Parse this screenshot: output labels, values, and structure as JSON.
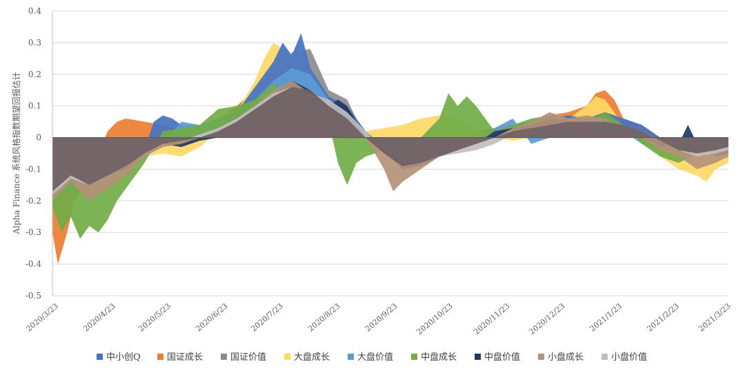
{
  "chart_data": {
    "type": "area",
    "title": "",
    "xlabel": "",
    "ylabel": "Alpha Finance 系统风格指数期望回报估计",
    "ylim": [
      -0.5,
      0.4
    ],
    "yticks": [
      "0.4",
      "0.3",
      "0.2",
      "0.1",
      "0",
      "-0.1",
      "-0.2",
      "-0.3",
      "-0.4",
      "-0.5"
    ],
    "ytick_values": [
      0.4,
      0.3,
      0.2,
      0.1,
      0,
      -0.1,
      -0.2,
      -0.3,
      -0.4,
      -0.5
    ],
    "grid": true,
    "legend_position": "bottom",
    "x_start_day": 0,
    "x_end_day": 367,
    "xticks": [
      {
        "label": "2020/3/23",
        "day": 0
      },
      {
        "label": "2020/4/23",
        "day": 31
      },
      {
        "label": "2020/5/23",
        "day": 61
      },
      {
        "label": "2020/6/23",
        "day": 92
      },
      {
        "label": "2020/7/23",
        "day": 122
      },
      {
        "label": "2020/8/23",
        "day": 153
      },
      {
        "label": "2020/9/23",
        "day": 184
      },
      {
        "label": "2020/10/23",
        "day": 214
      },
      {
        "label": "2020/11/23",
        "day": 245
      },
      {
        "label": "2020/12/23",
        "day": 275
      },
      {
        "label": "2021/1/23",
        "day": 306
      },
      {
        "label": "2021/2/23",
        "day": 337
      },
      {
        "label": "2021/3/23",
        "day": 365
      }
    ],
    "series": [
      {
        "name": "国证价值",
        "color": "#8C8C8C",
        "x": [
          0,
          10,
          20,
          30,
          40,
          50,
          60,
          70,
          80,
          90,
          100,
          110,
          120,
          130,
          140,
          150,
          160,
          170,
          180,
          190,
          200,
          210,
          220,
          230,
          240,
          250,
          260,
          270,
          280,
          290,
          300,
          310,
          320,
          330,
          340,
          350,
          360,
          367
        ],
        "values": [
          -0.22,
          -0.14,
          -0.18,
          -0.14,
          -0.1,
          -0.06,
          -0.03,
          -0.02,
          0.0,
          0.02,
          0.05,
          0.1,
          0.17,
          0.27,
          0.28,
          0.15,
          0.12,
          0.0,
          -0.05,
          -0.1,
          -0.08,
          -0.06,
          -0.04,
          -0.02,
          0.0,
          0.02,
          0.03,
          0.05,
          0.07,
          0.08,
          0.06,
          0.04,
          0.0,
          -0.04,
          -0.06,
          -0.05,
          -0.03,
          -0.02
        ]
      },
      {
        "name": "国证成长",
        "color": "#ED7D31",
        "x": [
          0,
          3,
          8,
          12,
          20,
          30,
          35,
          40,
          50,
          60,
          70,
          80,
          90,
          100,
          110,
          120,
          125,
          130,
          135,
          140,
          150,
          160,
          170,
          180,
          190,
          200,
          210,
          220,
          230,
          240,
          250,
          260,
          270,
          280,
          290,
          295,
          300,
          305,
          310,
          320,
          330,
          340,
          350,
          360,
          367
        ],
        "values": [
          -0.3,
          -0.4,
          -0.3,
          -0.2,
          -0.12,
          0.02,
          0.05,
          0.06,
          0.05,
          0.04,
          0.02,
          0.01,
          0.06,
          0.1,
          0.15,
          0.22,
          0.27,
          0.22,
          0.25,
          0.2,
          0.12,
          0.1,
          0.02,
          -0.04,
          -0.06,
          -0.06,
          -0.04,
          -0.02,
          0.02,
          0.03,
          0.04,
          0.05,
          0.07,
          0.08,
          0.1,
          0.14,
          0.15,
          0.12,
          0.06,
          0.04,
          0.0,
          -0.04,
          -0.06,
          -0.05,
          -0.07
        ]
      },
      {
        "name": "大盘成长",
        "color": "#FFD966",
        "x": [
          0,
          10,
          20,
          30,
          40,
          50,
          60,
          70,
          80,
          90,
          100,
          110,
          115,
          120,
          125,
          130,
          135,
          140,
          150,
          160,
          170,
          180,
          190,
          200,
          210,
          220,
          230,
          240,
          250,
          260,
          270,
          280,
          290,
          295,
          300,
          305,
          310,
          320,
          330,
          340,
          350,
          355,
          360,
          367
        ],
        "values": [
          -0.2,
          -0.16,
          -0.15,
          -0.12,
          -0.1,
          -0.06,
          -0.05,
          -0.06,
          -0.03,
          0.02,
          0.08,
          0.18,
          0.25,
          0.3,
          0.28,
          0.26,
          0.28,
          0.22,
          0.12,
          0.08,
          0.02,
          0.03,
          0.04,
          0.06,
          0.07,
          0.06,
          0.03,
          0.0,
          -0.01,
          0.0,
          0.03,
          0.06,
          0.1,
          0.13,
          0.12,
          0.08,
          0.04,
          0.0,
          -0.06,
          -0.1,
          -0.12,
          -0.14,
          -0.1,
          -0.08
        ]
      },
      {
        "name": "中小创Q",
        "color": "#4472C4",
        "x": [
          0,
          10,
          20,
          30,
          40,
          50,
          55,
          60,
          65,
          70,
          80,
          90,
          100,
          110,
          120,
          125,
          130,
          135,
          140,
          150,
          160,
          170,
          180,
          190,
          200,
          210,
          220,
          230,
          240,
          250,
          260,
          270,
          280,
          290,
          300,
          305,
          310,
          320,
          330,
          340,
          350,
          360,
          367
        ],
        "values": [
          -0.18,
          -0.15,
          -0.14,
          -0.12,
          -0.08,
          -0.04,
          0.05,
          0.07,
          0.06,
          0.04,
          0.03,
          0.06,
          0.08,
          0.16,
          0.24,
          0.3,
          0.26,
          0.33,
          0.22,
          0.13,
          0.1,
          0.02,
          -0.03,
          -0.08,
          -0.08,
          -0.06,
          -0.04,
          -0.02,
          0.02,
          0.04,
          0.05,
          0.06,
          0.07,
          0.06,
          0.08,
          0.07,
          0.06,
          0.04,
          0.0,
          -0.03,
          -0.05,
          -0.03,
          -0.04
        ]
      },
      {
        "name": "大盘价值",
        "color": "#5B9BD5",
        "x": [
          0,
          10,
          20,
          30,
          40,
          50,
          60,
          70,
          80,
          90,
          100,
          110,
          120,
          130,
          140,
          150,
          160,
          170,
          180,
          190,
          200,
          210,
          220,
          230,
          240,
          250,
          260,
          270,
          280,
          290,
          300,
          310,
          320,
          330,
          340,
          350,
          360,
          367
        ],
        "values": [
          -0.2,
          -0.16,
          -0.16,
          -0.13,
          -0.09,
          -0.05,
          -0.02,
          0.05,
          0.04,
          0.06,
          0.05,
          0.12,
          0.18,
          0.22,
          0.2,
          0.12,
          0.08,
          0.0,
          -0.02,
          -0.06,
          -0.06,
          -0.04,
          -0.02,
          -0.01,
          0.03,
          0.06,
          -0.02,
          0.0,
          0.03,
          0.02,
          0.05,
          0.02,
          -0.02,
          -0.04,
          -0.06,
          -0.05,
          -0.04,
          -0.03
        ]
      },
      {
        "name": "中盘成长",
        "color": "#70AD47",
        "x": [
          0,
          5,
          10,
          15,
          20,
          25,
          30,
          35,
          40,
          50,
          60,
          70,
          80,
          90,
          100,
          110,
          120,
          130,
          140,
          150,
          155,
          160,
          165,
          170,
          180,
          190,
          200,
          210,
          215,
          220,
          225,
          230,
          240,
          250,
          260,
          270,
          280,
          290,
          300,
          310,
          320,
          330,
          340,
          350,
          360,
          367
        ],
        "values": [
          -0.22,
          -0.3,
          -0.25,
          -0.32,
          -0.28,
          -0.3,
          -0.26,
          -0.2,
          -0.16,
          -0.08,
          0.02,
          0.03,
          0.04,
          0.09,
          0.1,
          0.12,
          0.17,
          0.12,
          0.1,
          0.05,
          -0.08,
          -0.15,
          -0.08,
          -0.06,
          -0.04,
          -0.02,
          0.0,
          0.06,
          0.14,
          0.1,
          0.13,
          0.1,
          0.02,
          0.04,
          0.06,
          0.07,
          0.06,
          0.05,
          0.08,
          0.04,
          -0.02,
          -0.06,
          -0.08,
          -0.05,
          -0.03,
          -0.04
        ]
      },
      {
        "name": "中盘价值",
        "color": "#1F3864",
        "x": [
          0,
          10,
          20,
          30,
          40,
          50,
          60,
          70,
          80,
          90,
          100,
          110,
          120,
          130,
          140,
          150,
          155,
          160,
          170,
          180,
          190,
          200,
          210,
          220,
          230,
          240,
          250,
          260,
          270,
          280,
          290,
          300,
          310,
          320,
          330,
          340,
          345,
          350,
          360,
          367
        ],
        "values": [
          -0.16,
          -0.14,
          -0.14,
          -0.12,
          -0.1,
          -0.05,
          -0.02,
          -0.03,
          -0.01,
          0.0,
          0.04,
          0.08,
          0.14,
          0.18,
          0.15,
          0.1,
          0.12,
          0.1,
          0.0,
          -0.04,
          -0.1,
          -0.09,
          -0.06,
          -0.04,
          -0.02,
          0.02,
          0.03,
          0.04,
          0.06,
          0.05,
          0.05,
          0.04,
          0.03,
          0.01,
          -0.03,
          -0.02,
          0.04,
          -0.02,
          -0.06,
          -0.05
        ]
      },
      {
        "name": "小盘成长",
        "color": "#B49178",
        "x": [
          0,
          10,
          20,
          30,
          40,
          50,
          60,
          70,
          80,
          90,
          100,
          110,
          120,
          130,
          140,
          150,
          160,
          170,
          180,
          185,
          190,
          200,
          210,
          220,
          230,
          240,
          250,
          260,
          270,
          280,
          290,
          300,
          310,
          320,
          330,
          340,
          350,
          360,
          367
        ],
        "values": [
          -0.2,
          -0.14,
          -0.2,
          -0.16,
          -0.12,
          -0.06,
          -0.03,
          -0.02,
          0.0,
          0.03,
          0.06,
          0.1,
          0.15,
          0.18,
          0.14,
          0.1,
          0.06,
          0.0,
          -0.1,
          -0.17,
          -0.14,
          -0.1,
          -0.06,
          -0.04,
          -0.02,
          0.0,
          0.03,
          0.05,
          0.08,
          0.06,
          0.07,
          0.06,
          0.02,
          0.0,
          -0.04,
          -0.06,
          -0.1,
          -0.08,
          -0.06
        ]
      },
      {
        "name": "小盘价值",
        "color": "#BFBFBF",
        "x": [
          0,
          10,
          20,
          30,
          40,
          50,
          60,
          70,
          80,
          90,
          100,
          110,
          120,
          130,
          140,
          150,
          160,
          170,
          180,
          190,
          200,
          210,
          220,
          230,
          240,
          250,
          260,
          270,
          280,
          290,
          300,
          310,
          320,
          330,
          340,
          350,
          360,
          367
        ],
        "values": [
          -0.18,
          -0.13,
          -0.15,
          -0.12,
          -0.09,
          -0.05,
          -0.02,
          -0.01,
          0.01,
          0.03,
          0.06,
          0.1,
          0.14,
          0.16,
          0.14,
          0.12,
          0.08,
          0.02,
          -0.04,
          -0.08,
          -0.08,
          -0.06,
          -0.05,
          -0.04,
          -0.02,
          0.01,
          0.03,
          0.04,
          0.05,
          0.05,
          0.05,
          0.04,
          0.02,
          -0.01,
          -0.04,
          -0.06,
          -0.05,
          -0.04
        ]
      },
      {
        "name": "系统风格指数",
        "color": "#6E5E61",
        "x": [
          0,
          10,
          20,
          30,
          40,
          50,
          60,
          70,
          80,
          90,
          100,
          110,
          120,
          130,
          140,
          150,
          160,
          170,
          180,
          190,
          200,
          210,
          220,
          230,
          240,
          250,
          260,
          270,
          280,
          290,
          300,
          310,
          320,
          330,
          340,
          350,
          360,
          367
        ],
        "values": [
          -0.17,
          -0.12,
          -0.15,
          -0.12,
          -0.09,
          -0.05,
          -0.02,
          -0.01,
          0.0,
          0.02,
          0.05,
          0.09,
          0.13,
          0.16,
          0.15,
          0.1,
          0.06,
          0.0,
          -0.05,
          -0.09,
          -0.08,
          -0.06,
          -0.04,
          -0.02,
          0.0,
          0.02,
          0.03,
          0.04,
          0.05,
          0.05,
          0.05,
          0.04,
          0.02,
          -0.01,
          -0.04,
          -0.05,
          -0.04,
          -0.03
        ],
        "in_legend": false
      }
    ],
    "legend": [
      "中小创Q",
      "国证成长",
      "国证价值",
      "大盘成长",
      "大盘价值",
      "中盘成长",
      "中盘价值",
      "小盘成长",
      "小盘价值"
    ],
    "legend_colors": [
      "#4472C4",
      "#ED7D31",
      "#8C8C8C",
      "#FFD966",
      "#5B9BD5",
      "#70AD47",
      "#1F3864",
      "#B49178",
      "#BFBFBF"
    ]
  }
}
